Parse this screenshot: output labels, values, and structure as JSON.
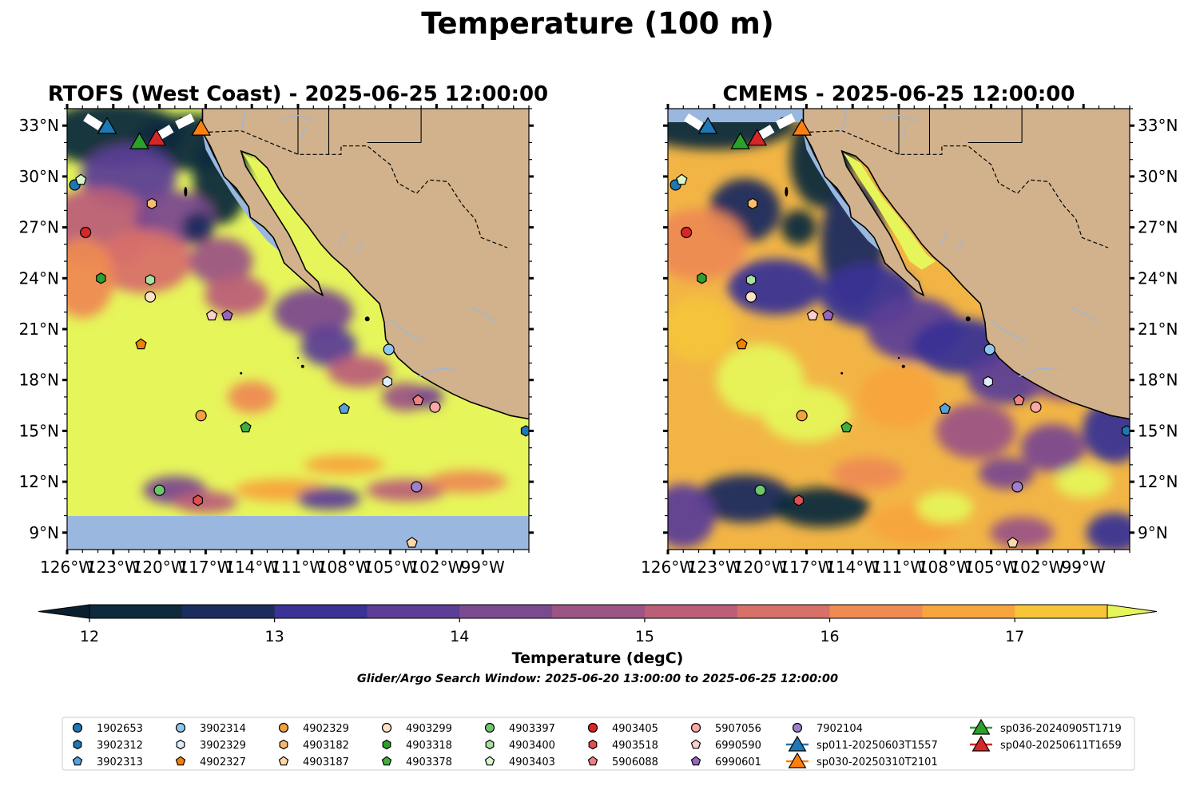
{
  "figure": {
    "suptitle": "Temperature (100 m)",
    "search_window": "Glider/Argo Search Window: 2025-06-20 13:00:00 to 2025-06-25 12:00:00"
  },
  "chart_data": [
    {
      "type": "heatmap",
      "title": "RTOFS (West Coast) - 2025-06-25 12:00:00",
      "xlim": [
        -126,
        -96
      ],
      "ylim": [
        8,
        34
      ],
      "x_ticks": [
        "126°W",
        "123°W",
        "120°W",
        "117°W",
        "114°W",
        "111°W",
        "108°W",
        "105°W",
        "102°W",
        "99°W"
      ],
      "y_ticks": [
        "9°N",
        "12°N",
        "15°N",
        "18°N",
        "21°N",
        "24°N",
        "27°N",
        "30°N",
        "33°N"
      ],
      "y_tick_side": "left",
      "no_data_below_lat": 10.1
    },
    {
      "type": "heatmap",
      "title": "CMEMS - 2025-06-25 12:00:00",
      "xlim": [
        -126,
        -96
      ],
      "ylim": [
        8,
        34
      ],
      "x_ticks": [
        "126°W",
        "123°W",
        "120°W",
        "117°W",
        "114°W",
        "111°W",
        "108°W",
        "105°W",
        "102°W",
        "99°W"
      ],
      "y_ticks": [
        "9°N",
        "12°N",
        "15°N",
        "18°N",
        "21°N",
        "24°N",
        "27°N",
        "30°N",
        "33°N"
      ],
      "y_tick_side": "right"
    }
  ],
  "colorbar": {
    "label": "Temperature (degC)",
    "min": 12,
    "max": 17.5,
    "step": 0.5,
    "tick_labels": [
      "12",
      "13",
      "14",
      "15",
      "16",
      "17"
    ],
    "extend": "both",
    "colors": [
      "#0e2a3c",
      "#1b2d5e",
      "#3a3295",
      "#5c3e96",
      "#7b4a8e",
      "#9c5484",
      "#bb5f78",
      "#d8706a",
      "#ee8a52",
      "#f8a43c",
      "#f6c538"
    ],
    "over_color": "#e6f55a",
    "under_color": "#0a1f2e"
  },
  "colors": {
    "land": "#d1b28c",
    "ocean_nodata": "#9ab7e0",
    "shelf": "#9ab7e0",
    "river": "#9ab7e0"
  },
  "floats": [
    {
      "id": "1902653",
      "marker": "circle",
      "color": "#1f77b4",
      "lon": -125.5,
      "lat": 29.5
    },
    {
      "id": "3902312",
      "marker": "hexagon",
      "color": "#1f77b4",
      "lon": -96.2,
      "lat": 15.0
    },
    {
      "id": "3902313",
      "marker": "pentagon",
      "color": "#5aa0d8",
      "lon": -108.0,
      "lat": 16.3
    },
    {
      "id": "3902314",
      "marker": "circle",
      "color": "#8ec8f0",
      "lon": -105.1,
      "lat": 19.8
    },
    {
      "id": "3902329",
      "marker": "hexagon",
      "color": "#dceefb",
      "lon": -105.2,
      "lat": 17.9
    },
    {
      "id": "4902327",
      "marker": "pentagon",
      "color": "#f08000",
      "lon": -121.2,
      "lat": 20.1
    },
    {
      "id": "4902329",
      "marker": "circle",
      "color": "#f5a040",
      "lon": -117.3,
      "lat": 15.9
    },
    {
      "id": "4903182",
      "marker": "hexagon",
      "color": "#f8bb70",
      "lon": -120.5,
      "lat": 28.4
    },
    {
      "id": "4903187",
      "marker": "pentagon",
      "color": "#fcd8a8",
      "lon": -103.6,
      "lat": 8.4
    },
    {
      "id": "4903299",
      "marker": "circle",
      "color": "#fde2c4",
      "lon": -120.6,
      "lat": 22.9
    },
    {
      "id": "4903318",
      "marker": "hexagon",
      "color": "#2ca02c",
      "lon": -123.8,
      "lat": 24.0
    },
    {
      "id": "4903378",
      "marker": "pentagon",
      "color": "#3fae3f",
      "lon": -114.4,
      "lat": 15.2
    },
    {
      "id": "4903397",
      "marker": "circle",
      "color": "#6cc86c",
      "lon": -120.0,
      "lat": 11.5
    },
    {
      "id": "4903400",
      "marker": "hexagon",
      "color": "#a8e0a0",
      "lon": -120.6,
      "lat": 23.9
    },
    {
      "id": "4903403",
      "marker": "pentagon",
      "color": "#d8f5c8",
      "lon": -125.1,
      "lat": 29.8
    },
    {
      "id": "4903405",
      "marker": "circle",
      "color": "#d62728",
      "lon": -124.8,
      "lat": 26.7
    },
    {
      "id": "4903518",
      "marker": "hexagon",
      "color": "#e05050",
      "lon": -117.5,
      "lat": 10.9
    },
    {
      "id": "5906088",
      "marker": "pentagon",
      "color": "#f08080",
      "lon": -103.2,
      "lat": 16.8
    },
    {
      "id": "5907056",
      "marker": "circle",
      "color": "#f8a8a8",
      "lon": -102.1,
      "lat": 16.4
    },
    {
      "id": "6990590",
      "marker": "pentagon",
      "color": "#fcd0d0",
      "lon": -116.6,
      "lat": 21.8
    },
    {
      "id": "6990601",
      "marker": "pentagon",
      "color": "#9467bd",
      "lon": -115.6,
      "lat": 21.8
    },
    {
      "id": "7902104",
      "marker": "circle",
      "color": "#a080c8",
      "lon": -103.3,
      "lat": 11.7
    }
  ],
  "gliders": [
    {
      "id": "sp011-20250603T1557",
      "color": "#1f77b4",
      "lon": -123.4,
      "lat": 33.0
    },
    {
      "id": "sp030-20250310T2101",
      "color": "#ff7f0e",
      "lon": -117.3,
      "lat": 32.9
    },
    {
      "id": "sp036-20240905T1719",
      "color": "#2ca02c",
      "lon": -121.3,
      "lat": 32.1
    },
    {
      "id": "sp040-20250611T1659",
      "color": "#d62728",
      "lon": -120.2,
      "lat": 32.3
    }
  ],
  "legend": {
    "position": "bottom",
    "columns": [
      [
        "1902653",
        "3902312",
        "3902313"
      ],
      [
        "3902314",
        "3902329",
        "4902327"
      ],
      [
        "4902329",
        "4903182",
        "4903187"
      ],
      [
        "4903299",
        "4903318",
        "4903378"
      ],
      [
        "4903397",
        "4903400",
        "4903403"
      ],
      [
        "4903405",
        "4903518",
        "5906088"
      ],
      [
        "5907056",
        "6990590",
        "6990601"
      ],
      [
        "7902104",
        "sp011-20250603T1557",
        "sp030-20250310T2101"
      ],
      [
        "sp036-20240905T1719",
        "sp040-20250611T1659"
      ]
    ]
  }
}
